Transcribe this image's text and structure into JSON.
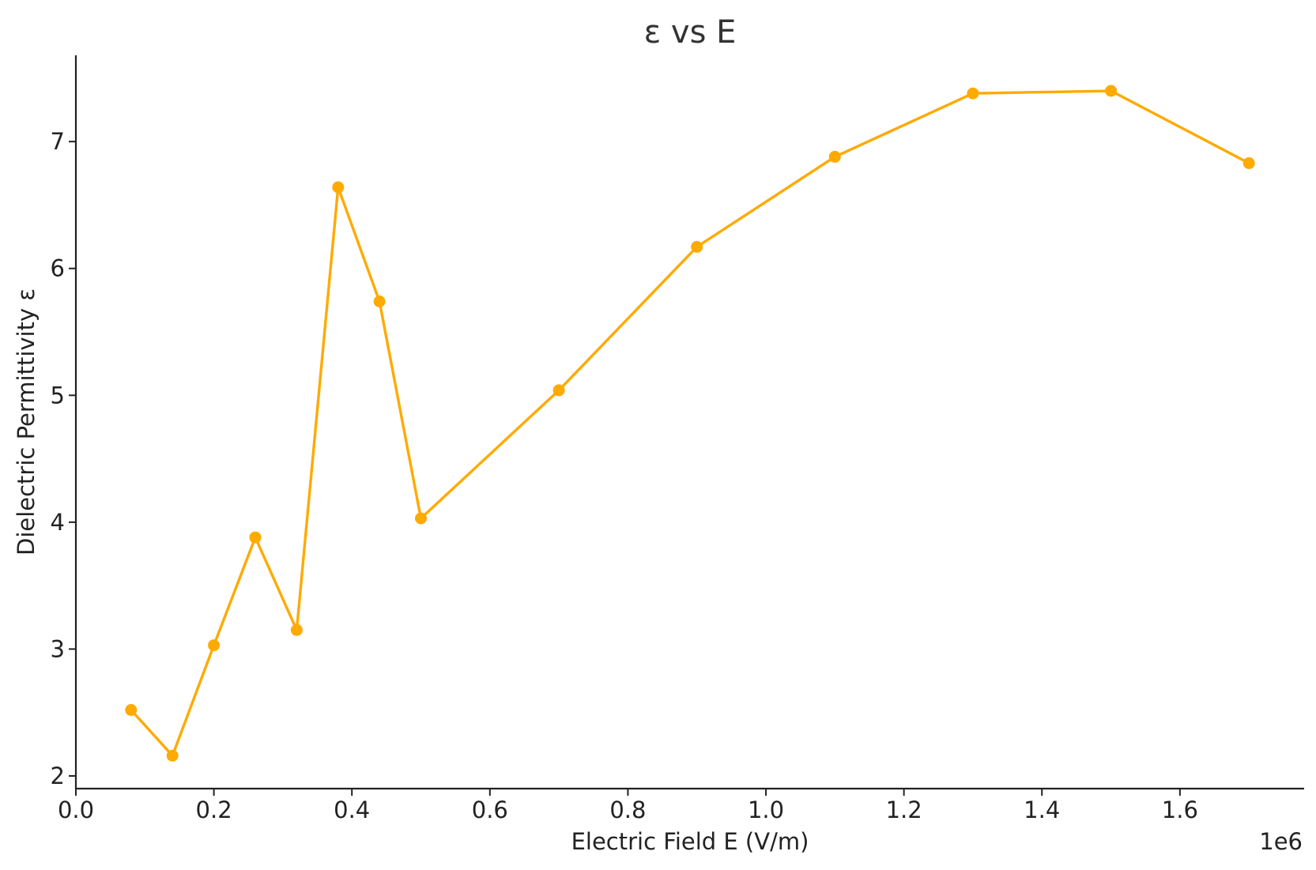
{
  "chart_data": {
    "type": "line",
    "title": "ε vs E",
    "xlabel": "Electric Field E (V/m)",
    "ylabel": "Dielectric Permittivity ε",
    "x_offset_label": "1e6",
    "xlim": [
      0,
      1.78
    ],
    "ylim": [
      1.9,
      7.68
    ],
    "x_ticks": [
      0.0,
      0.2,
      0.4,
      0.6,
      0.8,
      1.0,
      1.2,
      1.4,
      1.6
    ],
    "x_tick_labels": [
      "0.0",
      "0.2",
      "0.4",
      "0.6",
      "0.8",
      "1.0",
      "1.2",
      "1.4",
      "1.6"
    ],
    "y_ticks": [
      2,
      3,
      4,
      5,
      6,
      7
    ],
    "y_tick_labels": [
      "2",
      "3",
      "4",
      "5",
      "6",
      "7"
    ],
    "grid": false,
    "series_color": "#FFAA00",
    "series": [
      {
        "x": [
          0.08,
          0.14,
          0.2,
          0.26,
          0.32,
          0.38,
          0.44,
          0.5,
          0.7,
          0.9,
          1.1,
          1.3,
          1.5,
          1.7
        ],
        "y": [
          2.52,
          2.16,
          3.03,
          3.88,
          3.15,
          6.64,
          5.74,
          4.03,
          5.04,
          6.17,
          6.88,
          7.38,
          7.4,
          6.83
        ]
      }
    ]
  }
}
